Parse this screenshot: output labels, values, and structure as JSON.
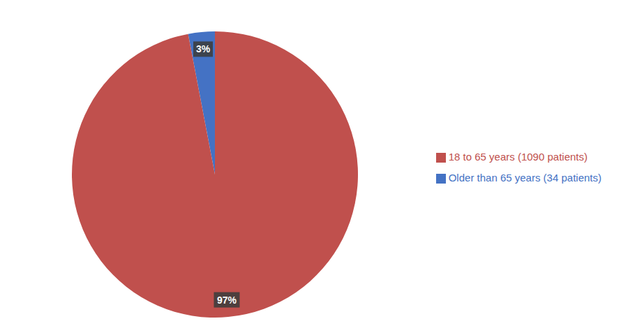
{
  "chart_data": {
    "type": "pie",
    "categories": [
      "Older than 65 years (34 patients)",
      "18 to 65 years (1090 patients)"
    ],
    "values": [
      3,
      97
    ],
    "value_labels": [
      "3%",
      "97%"
    ],
    "colors": [
      "#4472C4",
      "#C0504D"
    ],
    "data_labels": true,
    "legend": "right"
  }
}
